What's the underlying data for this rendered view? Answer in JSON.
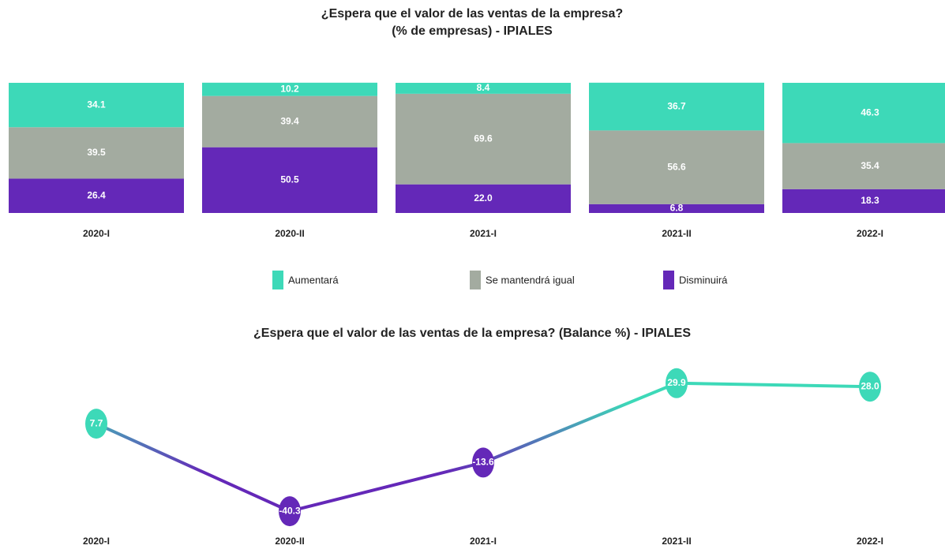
{
  "chart_data": [
    {
      "type": "stacked_bar",
      "title": "¿Espera que el valor de las ventas de la empresa?",
      "subtitle": "(% de empresas) - IPIALES",
      "categories": [
        "2020-I",
        "2020-II",
        "2021-I",
        "2021-II",
        "2022-I"
      ],
      "ylim": [
        0,
        100
      ],
      "series": [
        {
          "name": "Disminuirá",
          "color": "#6428b8",
          "values": [
            26.4,
            50.5,
            22.0,
            6.8,
            18.3
          ],
          "value_labels": [
            "26.4",
            "50.5",
            "22.0",
            "6.8",
            "18.3"
          ]
        },
        {
          "name": "Se mantendrá igual",
          "color": "#a3aba0",
          "values": [
            39.5,
            39.4,
            69.6,
            56.6,
            35.4
          ],
          "value_labels": [
            "39.5",
            "39.4",
            "69.6",
            "56.6",
            "35.4"
          ]
        },
        {
          "name": "Aumentará",
          "color": "#3dd9b8",
          "values": [
            34.1,
            10.2,
            8.4,
            36.7,
            46.3
          ],
          "value_labels": [
            "34.1",
            "10.2",
            "8.4",
            "36.7",
            "46.3"
          ]
        }
      ],
      "legend": "bottom"
    },
    {
      "type": "line",
      "title": "¿Espera que el valor de las ventas de la empresa?  (Balance %) - IPIALES",
      "categories": [
        "2020-I",
        "2020-II",
        "2021-I",
        "2021-II",
        "2022-I"
      ],
      "ylim": [
        -45,
        35
      ],
      "series": [
        {
          "name": "Balance",
          "color": "#3dd9b8",
          "negative_color": "#6428b8",
          "values": [
            7.7,
            -40.3,
            -13.6,
            29.9,
            28.0
          ],
          "value_labels": [
            "7.7",
            "-40.3",
            "-13.6",
            "29.9",
            "28.0"
          ]
        }
      ]
    }
  ]
}
